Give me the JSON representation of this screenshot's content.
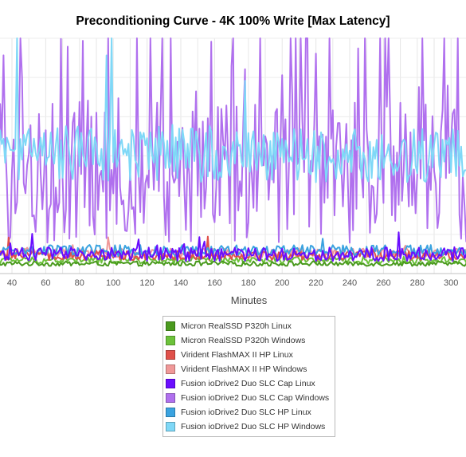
{
  "chart_data": {
    "type": "line",
    "title": "Preconditioning Curve - 4K 100% Write [Max Latency]",
    "xlabel": "Minutes",
    "ylabel": "",
    "xlim": [
      30,
      310
    ],
    "ylim": [
      0,
      100
    ],
    "x_ticks": [
      40,
      60,
      80,
      100,
      120,
      140,
      160,
      180,
      200,
      220,
      240,
      260,
      280,
      300
    ],
    "grid": true,
    "legend_position": "bottom",
    "series": [
      {
        "name": "Micron RealSSD P320h Linux",
        "color": "#4a9a1e",
        "level": 1.5,
        "noise": 1.0,
        "spike_prob": 0.0,
        "spike_height": 0
      },
      {
        "name": "Micron RealSSD P320h Windows",
        "color": "#6cc23a",
        "level": 3.0,
        "noise": 1.5,
        "spike_prob": 0.0,
        "spike_height": 0
      },
      {
        "name": "Virident FlashMAX II HP Linux",
        "color": "#e0504a",
        "level": 5.0,
        "noise": 2.0,
        "spike_prob": 0.03,
        "spike_height": 10
      },
      {
        "name": "Virident FlashMAX II HP Windows",
        "color": "#f09898",
        "level": 6.0,
        "noise": 2.0,
        "spike_prob": 0.02,
        "spike_height": 8
      },
      {
        "name": "Fusion ioDrive2 Duo SLC Cap Linux",
        "color": "#6a0dff",
        "level": 5.5,
        "noise": 3.0,
        "spike_prob": 0.03,
        "spike_height": 10
      },
      {
        "name": "Fusion ioDrive2 Duo SLC Cap Windows",
        "color": "#b070ee",
        "level": 40,
        "noise": 30,
        "spike_prob": 0.2,
        "spike_height": 100
      },
      {
        "name": "Fusion ioDrive2 Duo SLC HP Linux",
        "color": "#3aa3e0",
        "level": 7.0,
        "noise": 2.5,
        "spike_prob": 0.02,
        "spike_height": 8
      },
      {
        "name": "Fusion ioDrive2 Duo SLC HP Windows",
        "color": "#7fd8f7",
        "level": 48,
        "noise": 12,
        "spike_prob": 0.05,
        "spike_height": 100
      }
    ]
  }
}
